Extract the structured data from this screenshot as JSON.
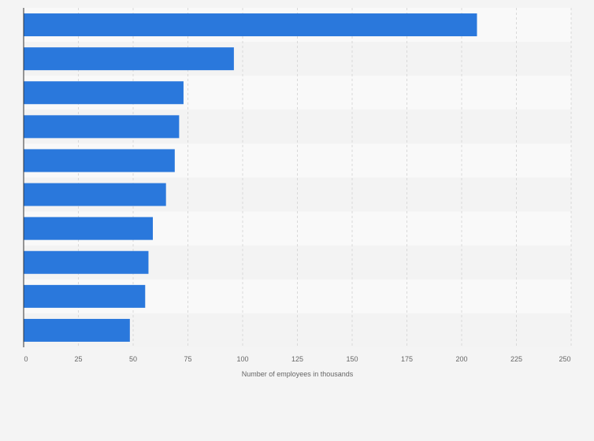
{
  "chart_data": {
    "type": "bar",
    "orientation": "horizontal",
    "title": "",
    "xlabel": "Number of employees in thousands",
    "ylabel": "",
    "xlim": [
      0,
      250
    ],
    "xticks": [
      0,
      25,
      50,
      75,
      100,
      125,
      150,
      175,
      200,
      225,
      250
    ],
    "categories": [
      "",
      "",
      "",
      "",
      "",
      "",
      "",
      "",
      "",
      ""
    ],
    "values": [
      207,
      96,
      73,
      71,
      69,
      65,
      59,
      57,
      55.5,
      48.5
    ],
    "grid": true,
    "legend": "none",
    "colors": {
      "bar": "#2a78dc",
      "band_light": "#f9f9f9",
      "band_dark": "#f3f3f3",
      "grid": "#d9d9d9",
      "axis": "#333333",
      "text": "#666666"
    }
  }
}
